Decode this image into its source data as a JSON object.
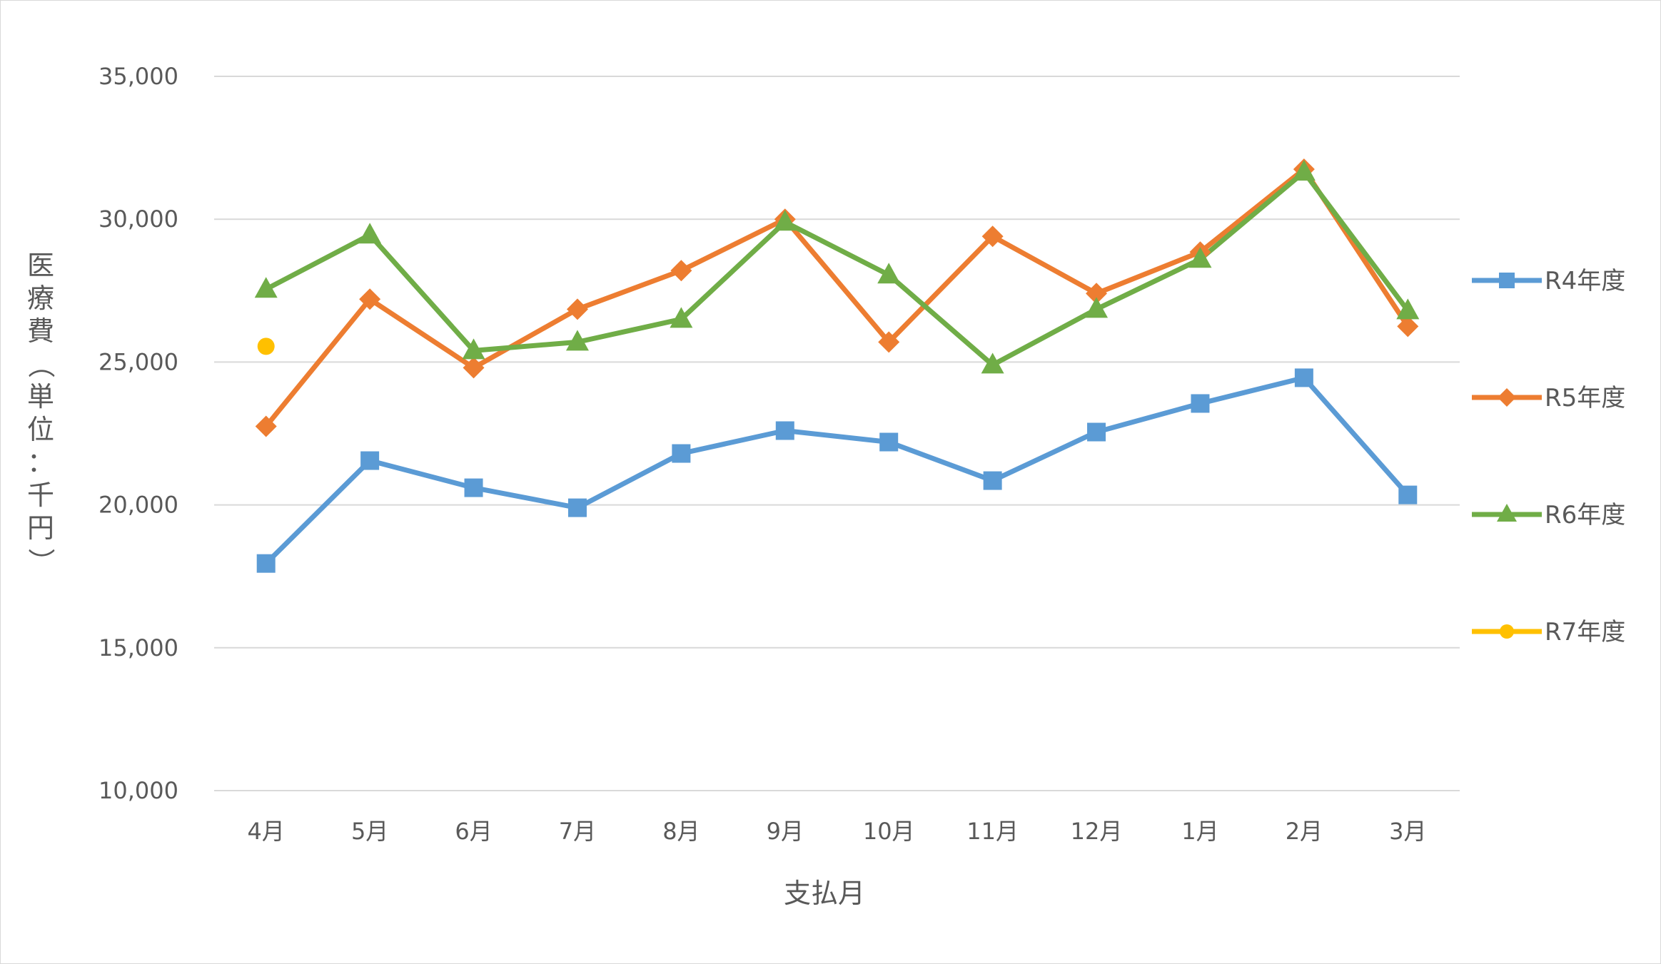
{
  "chart_data": {
    "type": "line",
    "title": "",
    "xlabel": "支払月",
    "ylabel": "医療費（単位：千円）",
    "ylim": [
      10000,
      35000
    ],
    "yticks": [
      "10,000",
      "15,000",
      "20,000",
      "25,000",
      "30,000",
      "35,000"
    ],
    "ytick_values": [
      10000,
      15000,
      20000,
      25000,
      30000,
      35000
    ],
    "grid": true,
    "legend_position": "right",
    "categories": [
      "4月",
      "5月",
      "6月",
      "7月",
      "8月",
      "9月",
      "10月",
      "11月",
      "12月",
      "1月",
      "2月",
      "3月"
    ],
    "series": [
      {
        "name": "R4年度",
        "color": "#5b9bd5",
        "marker": "square",
        "values": [
          17950,
          21550,
          20600,
          19900,
          21800,
          22600,
          22200,
          20850,
          22550,
          23550,
          24450,
          20350
        ]
      },
      {
        "name": "R5年度",
        "color": "#ed7d31",
        "marker": "diamond",
        "values": [
          22750,
          27200,
          24800,
          26850,
          28200,
          30000,
          25700,
          29400,
          27400,
          28850,
          31750,
          26250
        ]
      },
      {
        "name": "R6年度",
        "color": "#70ad47",
        "marker": "triangle",
        "values": [
          27550,
          29450,
          25400,
          25700,
          26500,
          29900,
          28050,
          24900,
          26850,
          28600,
          31650,
          26800
        ]
      },
      {
        "name": "R7年度",
        "color": "#ffc000",
        "marker": "circle",
        "values": [
          25550,
          null,
          null,
          null,
          null,
          null,
          null,
          null,
          null,
          null,
          null,
          null
        ]
      }
    ]
  }
}
